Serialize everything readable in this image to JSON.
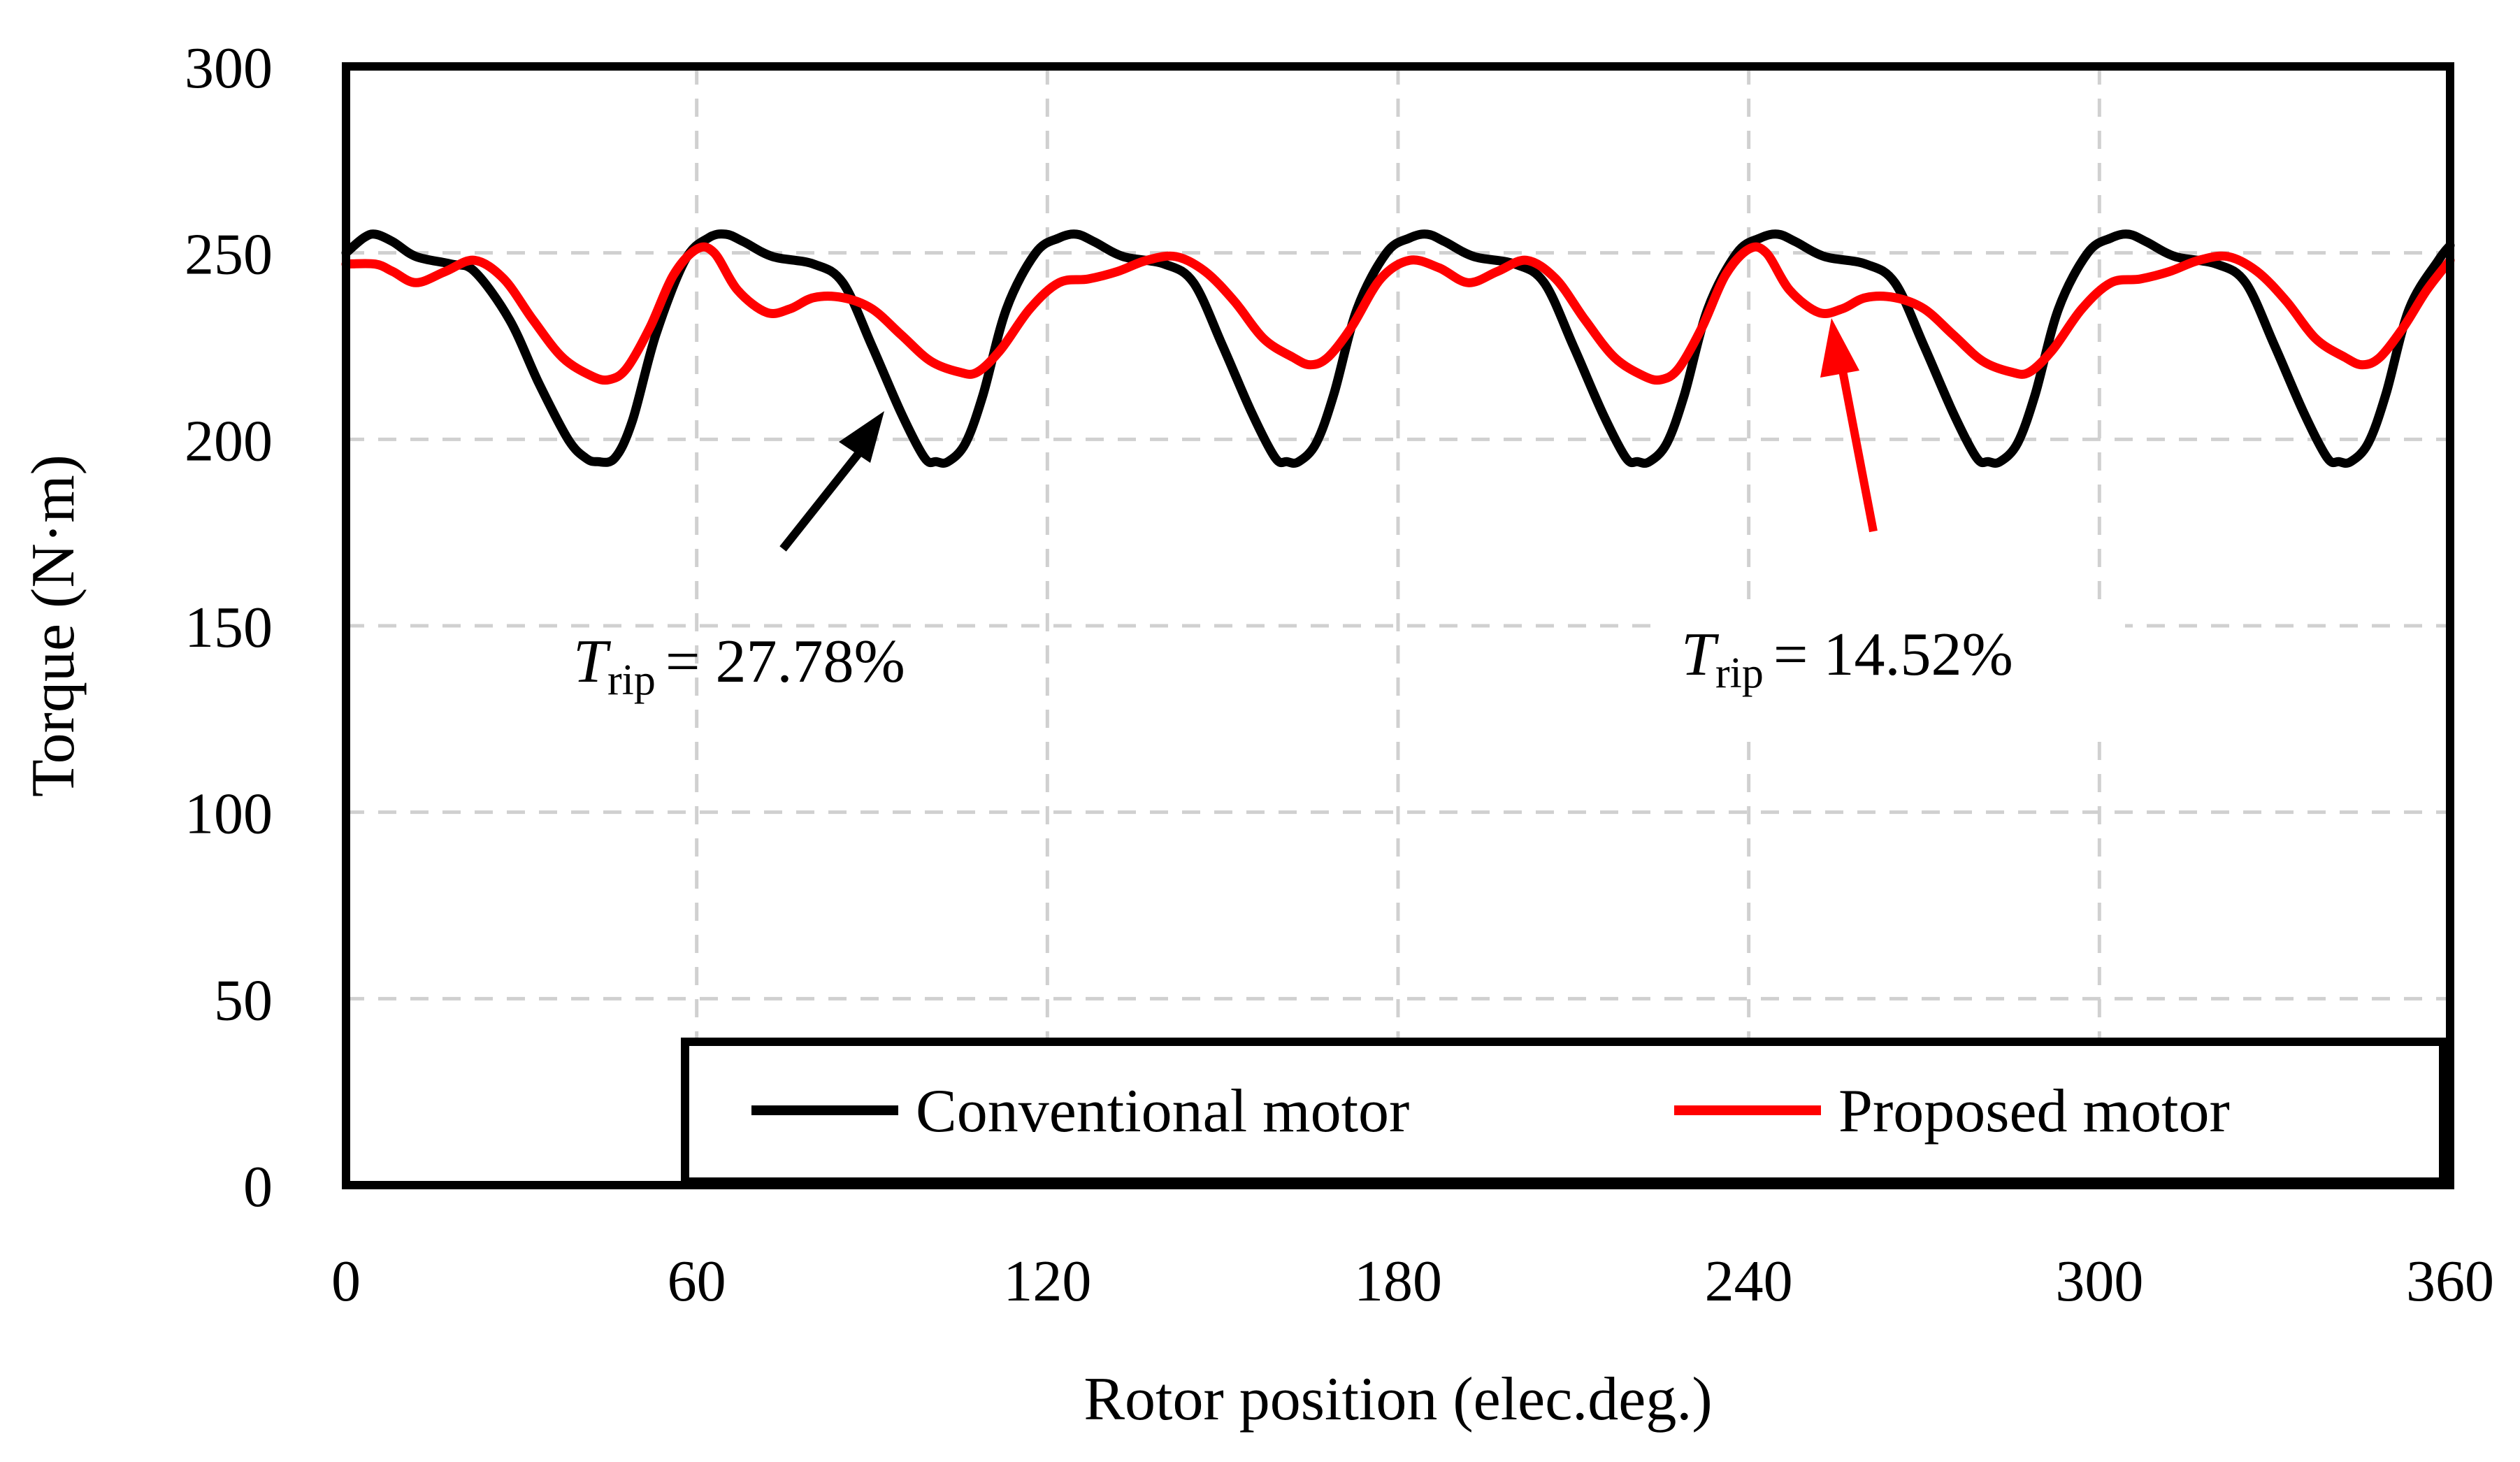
{
  "chart_data": {
    "type": "line",
    "title": "",
    "xlabel": "Rotor position (elec.deg.)",
    "ylabel": "Torque (N·m)",
    "xlim": [
      0,
      360
    ],
    "ylim": [
      0,
      300
    ],
    "x_ticks": [
      0,
      60,
      120,
      180,
      240,
      300,
      360
    ],
    "y_ticks": [
      0,
      50,
      100,
      150,
      200,
      250,
      300
    ],
    "grid": true,
    "legend_position": "bottom-right",
    "series": [
      {
        "name": "Conventional motor",
        "color": "#000000",
        "x": [
          0,
          3,
          5,
          8,
          12,
          18,
          22,
          28,
          33,
          38,
          41,
          43,
          46,
          49,
          53,
          58,
          62,
          65,
          68,
          73,
          80,
          85,
          90,
          95,
          99,
          101,
          103,
          106,
          109,
          113,
          118,
          122,
          125,
          128,
          133,
          140,
          145,
          150,
          155,
          159,
          161,
          163,
          166,
          169,
          173,
          178,
          182,
          185,
          188,
          193,
          200,
          205,
          210,
          215,
          219,
          221,
          223,
          226,
          229,
          233,
          238,
          242,
          245,
          248,
          253,
          260,
          265,
          270,
          275,
          279,
          281,
          283,
          286,
          289,
          293,
          298,
          302,
          305,
          308,
          313,
          320,
          325,
          330,
          335,
          339,
          341,
          343,
          346,
          349,
          353,
          358,
          360
        ],
        "y": [
          250,
          254,
          255,
          253,
          249,
          247,
          245,
          232,
          215,
          200,
          195,
          194,
          195,
          205,
          228,
          248,
          254,
          255,
          253,
          249,
          247,
          242,
          225,
          207,
          195,
          194,
          194,
          199,
          212,
          235,
          250,
          254,
          255,
          253,
          249,
          247,
          242,
          225,
          207,
          195,
          194,
          194,
          199,
          212,
          235,
          250,
          254,
          255,
          253,
          249,
          247,
          242,
          225,
          207,
          195,
          194,
          194,
          199,
          212,
          235,
          250,
          254,
          255,
          253,
          249,
          247,
          242,
          225,
          207,
          195,
          194,
          194,
          199,
          212,
          235,
          250,
          254,
          255,
          253,
          249,
          247,
          242,
          225,
          207,
          195,
          194,
          194,
          199,
          212,
          235,
          248,
          252
        ]
      },
      {
        "name": "Proposed motor",
        "color": "#ff0000",
        "x": [
          0,
          5,
          8,
          12,
          17,
          22,
          27,
          32,
          37,
          42,
          45,
          48,
          52,
          56,
          60,
          63,
          67,
          72,
          76,
          80,
          85,
          90,
          95,
          100,
          105,
          108,
          112,
          117,
          122,
          127,
          132,
          137,
          142,
          147,
          152,
          157,
          162,
          165,
          168,
          172,
          177,
          182,
          187,
          192,
          197,
          202,
          207,
          212,
          217,
          222,
          225,
          228,
          232,
          236,
          240,
          243,
          247,
          252,
          256,
          260,
          265,
          270,
          275,
          280,
          285,
          288,
          292,
          297,
          302,
          307,
          312,
          317,
          322,
          327,
          332,
          337,
          342,
          345,
          348,
          352,
          356,
          360
        ],
        "y": [
          247,
          247,
          245,
          242,
          245,
          248,
          243,
          232,
          222,
          217,
          216,
          219,
          230,
          244,
          251,
          250,
          240,
          234,
          235,
          238,
          238,
          235,
          228,
          221,
          218,
          218,
          224,
          235,
          242,
          243,
          245,
          248,
          249,
          245,
          237,
          227,
          222,
          220,
          222,
          230,
          243,
          248,
          246,
          242,
          245,
          248,
          243,
          232,
          222,
          217,
          216,
          219,
          230,
          244,
          251,
          250,
          240,
          234,
          235,
          238,
          238,
          235,
          228,
          221,
          218,
          218,
          224,
          235,
          242,
          243,
          245,
          248,
          249,
          245,
          237,
          227,
          222,
          220,
          222,
          230,
          240,
          248
        ]
      }
    ],
    "annotations": [
      {
        "symbol": "T",
        "subscript": "rip",
        "value": "= 27.78%",
        "color": "#000000"
      },
      {
        "symbol": "T",
        "subscript": "rip",
        "value": "= 14.52%",
        "color": "#ff0000"
      }
    ]
  }
}
